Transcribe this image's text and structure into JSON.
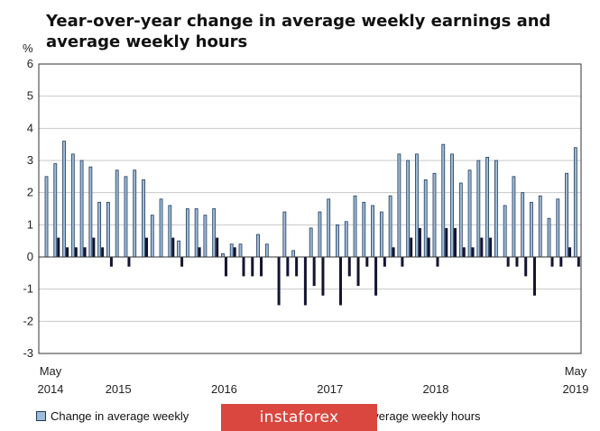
{
  "title": "Year-over-year change in average weekly earnings and average weekly hours",
  "chart_data": {
    "type": "bar",
    "ylabel": "%",
    "ylim": [
      -3,
      6
    ],
    "yticks": [
      "6",
      "5",
      "4",
      "3",
      "2",
      "1",
      "0",
      "-1",
      "-2",
      "-3"
    ],
    "x_tick_labels": [
      {
        "month": "May",
        "year": "2014"
      },
      {
        "month": "",
        "year": "2015"
      },
      {
        "month": "",
        "year": "2016"
      },
      {
        "month": "",
        "year": "2017"
      },
      {
        "month": "",
        "year": "2018"
      },
      {
        "month": "May",
        "year": "2019"
      }
    ],
    "x_tick_index": [
      0,
      8,
      20,
      32,
      44,
      60
    ],
    "categories": [
      "2014-05",
      "2014-06",
      "2014-07",
      "2014-08",
      "2014-09",
      "2014-10",
      "2014-11",
      "2014-12",
      "2015-01",
      "2015-02",
      "2015-03",
      "2015-04",
      "2015-05",
      "2015-06",
      "2015-07",
      "2015-08",
      "2015-09",
      "2015-10",
      "2015-11",
      "2015-12",
      "2016-01",
      "2016-02",
      "2016-03",
      "2016-04",
      "2016-05",
      "2016-06",
      "2016-07",
      "2016-08",
      "2016-09",
      "2016-10",
      "2016-11",
      "2016-12",
      "2017-01",
      "2017-02",
      "2017-03",
      "2017-04",
      "2017-05",
      "2017-06",
      "2017-07",
      "2017-08",
      "2017-09",
      "2017-10",
      "2017-11",
      "2017-12",
      "2018-01",
      "2018-02",
      "2018-03",
      "2018-04",
      "2018-05",
      "2018-06",
      "2018-07",
      "2018-08",
      "2018-09",
      "2018-10",
      "2018-11",
      "2018-12",
      "2019-01",
      "2019-02",
      "2019-03",
      "2019-04",
      "2019-05"
    ],
    "series": [
      {
        "name": "Change in average weekly earnings",
        "color": "#9ebcd9",
        "stroke": "#1f3a5a",
        "values": [
          2.5,
          2.9,
          3.6,
          3.2,
          3.0,
          2.8,
          1.7,
          1.7,
          2.7,
          2.5,
          2.7,
          2.4,
          1.3,
          1.8,
          1.6,
          0.5,
          1.5,
          1.5,
          1.3,
          1.5,
          0.1,
          0.4,
          0.4,
          0.0,
          0.7,
          0.4,
          0.0,
          1.4,
          0.2,
          0.0,
          0.9,
          1.4,
          1.8,
          1.0,
          1.1,
          1.9,
          1.7,
          1.6,
          1.4,
          1.9,
          3.2,
          3.0,
          3.2,
          2.4,
          2.6,
          3.5,
          3.2,
          2.3,
          2.7,
          3.0,
          3.1,
          3.0,
          1.6,
          2.5,
          2.0,
          1.7,
          1.9,
          1.2,
          1.8,
          2.6,
          3.4
        ]
      },
      {
        "name": "Change in average weekly hours",
        "color": "#141432",
        "values": [
          0.0,
          0.6,
          0.3,
          0.3,
          0.3,
          0.6,
          0.3,
          -0.3,
          0.0,
          -0.3,
          0.0,
          0.6,
          0.0,
          0.0,
          0.6,
          -0.3,
          0.0,
          0.3,
          0.0,
          0.6,
          -0.6,
          0.3,
          -0.6,
          -0.6,
          -0.6,
          0.0,
          -1.5,
          -0.6,
          -0.6,
          -1.5,
          -0.9,
          -1.2,
          0.0,
          -1.5,
          -0.6,
          -0.9,
          -0.3,
          -1.2,
          -0.3,
          0.3,
          -0.3,
          0.6,
          0.9,
          0.6,
          -0.3,
          0.9,
          0.9,
          0.3,
          0.3,
          0.6,
          0.6,
          0.0,
          -0.3,
          -0.3,
          -0.6,
          -1.2,
          0.0,
          -0.3,
          -0.3,
          0.3,
          -0.3
        ]
      }
    ]
  },
  "legend": {
    "earnings_label": "Change in average weekly",
    "hours_label": "n average weekly hours"
  },
  "watermark": "instaforex"
}
